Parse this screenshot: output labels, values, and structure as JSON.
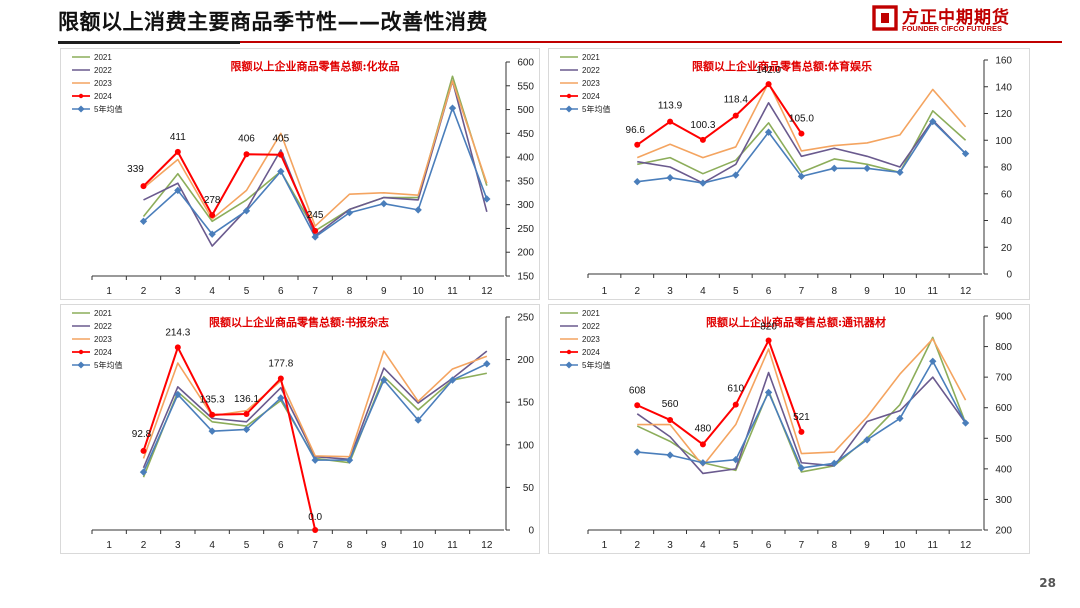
{
  "page": {
    "title": "限额以上消费主要商品季节性——改善性消费",
    "page_number": "28"
  },
  "logo": {
    "name_cn": "方正中期期货",
    "name_en": "FOUNDER CIFCO FUTURES",
    "color": "#c00000"
  },
  "colors": {
    "2021": "#8cad5a",
    "2022": "#6a5a8e",
    "2023": "#f4a460",
    "2024": "#ff0000",
    "avg": "#4a7ebb"
  },
  "chart_data": [
    {
      "type": "line",
      "title": "限额以上企业商品零售总额:化妆品",
      "categories": [
        "1",
        "2",
        "3",
        "4",
        "5",
        "6",
        "7",
        "8",
        "9",
        "10",
        "11",
        "12"
      ],
      "ylim": [
        150,
        600
      ],
      "yticks": [
        "150",
        "200",
        "250",
        "300",
        "350",
        "400",
        "450",
        "500",
        "550",
        "600"
      ],
      "legend_position": "top-left",
      "grid": false,
      "series": [
        {
          "name": "2021",
          "key": "2021",
          "values": [
            null,
            275,
            365,
            265,
            310,
            370,
            245,
            290,
            315,
            315,
            570,
            340
          ]
        },
        {
          "name": "2022",
          "key": "2022",
          "values": [
            null,
            310,
            345,
            213,
            290,
            415,
            235,
            290,
            315,
            310,
            560,
            285
          ]
        },
        {
          "name": "2023",
          "key": "2023",
          "values": [
            null,
            335,
            395,
            270,
            330,
            450,
            255,
            322,
            325,
            320,
            560,
            345
          ]
        },
        {
          "name": "2024",
          "key": "2024",
          "values": [
            null,
            339,
            411,
            278,
            406,
            405,
            245,
            null,
            null,
            null,
            null,
            null
          ],
          "labels": [
            "",
            "339",
            "411",
            "278",
            "406",
            "405",
            "245",
            "",
            "",
            "",
            "",
            ""
          ]
        },
        {
          "name": "5年均值",
          "key": "avg",
          "values": [
            null,
            265,
            330,
            238,
            287,
            370,
            232,
            283,
            302,
            289,
            503,
            312
          ]
        }
      ]
    },
    {
      "type": "line",
      "title": "限额以上企业商品零售总额:体育娱乐",
      "categories": [
        "1",
        "2",
        "3",
        "4",
        "5",
        "6",
        "7",
        "8",
        "9",
        "10",
        "11",
        "12"
      ],
      "ylim": [
        0,
        160
      ],
      "yticks": [
        "0",
        "20",
        "40",
        "60",
        "80",
        "100",
        "120",
        "140",
        "160"
      ],
      "legend_position": "top-left",
      "grid": false,
      "series": [
        {
          "name": "2021",
          "key": "2021",
          "values": [
            null,
            82,
            87,
            75,
            85,
            113,
            76,
            86,
            82,
            76,
            122,
            100
          ]
        },
        {
          "name": "2022",
          "key": "2022",
          "values": [
            null,
            84,
            80,
            68,
            82,
            128,
            88,
            94,
            88,
            80,
            115,
            90
          ]
        },
        {
          "name": "2023",
          "key": "2023",
          "values": [
            null,
            87,
            97,
            87,
            95,
            143,
            92,
            96,
            98,
            104,
            138,
            110
          ]
        },
        {
          "name": "2024",
          "key": "2024",
          "values": [
            null,
            96.6,
            113.9,
            100.3,
            118.4,
            142.0,
            105.0,
            null,
            null,
            null,
            null,
            null
          ],
          "labels": [
            "",
            "96.6",
            "113.9",
            "100.3",
            "118.4",
            "142.0",
            "105.0",
            "",
            "",
            "",
            "",
            ""
          ]
        },
        {
          "name": "5年均值",
          "key": "avg",
          "values": [
            null,
            69,
            72,
            68,
            74,
            106,
            73,
            79,
            79,
            76,
            114,
            90
          ]
        }
      ]
    },
    {
      "type": "line",
      "title": "限额以上企业商品零售总额:书报杂志",
      "categories": [
        "1",
        "2",
        "3",
        "4",
        "5",
        "6",
        "7",
        "8",
        "9",
        "10",
        "11",
        "12"
      ],
      "ylim": [
        0,
        250
      ],
      "yticks": [
        "0",
        "50",
        "100",
        "150",
        "200",
        "250"
      ],
      "legend_position": "top-left",
      "grid": false,
      "series": [
        {
          "name": "2021",
          "key": "2021",
          "values": [
            null,
            62,
            162,
            127,
            122,
            152,
            84,
            79,
            180,
            141,
            176,
            184
          ]
        },
        {
          "name": "2022",
          "key": "2022",
          "values": [
            null,
            73,
            168,
            131,
            127,
            167,
            86,
            83,
            190,
            149,
            178,
            210
          ]
        },
        {
          "name": "2023",
          "key": "2023",
          "values": [
            null,
            84,
            196,
            134,
            140,
            175,
            87,
            86,
            210,
            151,
            189,
            204
          ]
        },
        {
          "name": "2024",
          "key": "2024",
          "values": [
            null,
            92.8,
            214.3,
            135.3,
            136.1,
            177.8,
            0.0,
            null,
            null,
            null,
            null,
            null
          ],
          "labels": [
            "",
            "92.8",
            "214.3",
            "135.3",
            "136.1",
            "177.8",
            "0.0",
            "",
            "",
            "",
            "",
            ""
          ]
        },
        {
          "name": "5年均值",
          "key": "avg",
          "values": [
            null,
            68,
            159,
            116,
            118,
            155,
            82,
            82,
            176,
            129,
            176,
            195
          ]
        }
      ]
    },
    {
      "type": "line",
      "title": "限额以上企业商品零售总额:通讯器材",
      "categories": [
        "1",
        "2",
        "3",
        "4",
        "5",
        "6",
        "7",
        "8",
        "9",
        "10",
        "11",
        "12"
      ],
      "ylim": [
        200,
        900
      ],
      "yticks": [
        "200",
        "300",
        "400",
        "500",
        "600",
        "700",
        "800",
        "900"
      ],
      "legend_position": "top-left",
      "grid": false,
      "series": [
        {
          "name": "2021",
          "key": "2021",
          "values": [
            null,
            540,
            490,
            420,
            395,
            655,
            390,
            410,
            500,
            610,
            830,
            550
          ]
        },
        {
          "name": "2022",
          "key": "2022",
          "values": [
            null,
            580,
            505,
            385,
            400,
            715,
            420,
            410,
            555,
            590,
            700,
            550
          ]
        },
        {
          "name": "2023",
          "key": "2023",
          "values": [
            null,
            545,
            545,
            410,
            545,
            792,
            450,
            455,
            570,
            710,
            825,
            625
          ]
        },
        {
          "name": "2024",
          "key": "2024",
          "values": [
            null,
            608,
            560,
            480,
            610,
            820,
            521,
            null,
            null,
            null,
            null,
            null
          ],
          "labels": [
            "",
            "608",
            "560",
            "480",
            "610",
            "820",
            "521",
            "",
            "",
            "",
            "",
            ""
          ]
        },
        {
          "name": "5年均值",
          "key": "avg",
          "values": [
            null,
            455,
            445,
            420,
            430,
            650,
            403,
            418,
            495,
            565,
            752,
            550
          ]
        }
      ]
    }
  ]
}
